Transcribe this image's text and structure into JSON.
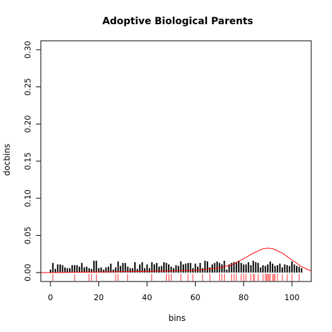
{
  "chart_data": {
    "type": "bar",
    "title": "Adoptive Biological Parents",
    "xlabel": "bins",
    "ylabel": "docbins",
    "xlim": [
      -4,
      108
    ],
    "ylim": [
      -0.012,
      0.312
    ],
    "x_ticks": [
      0,
      20,
      40,
      60,
      80,
      100
    ],
    "x_tick_labels": [
      "0",
      "20",
      "40",
      "60",
      "80",
      "100"
    ],
    "y_ticks": [
      0.0,
      0.05,
      0.1,
      0.15,
      0.2,
      0.25,
      0.3
    ],
    "y_tick_labels": [
      "0.00",
      "0.05",
      "0.10",
      "0.15",
      "0.20",
      "0.25",
      "0.30"
    ],
    "colors": {
      "bars": "#000000",
      "curve": "#ff0000",
      "rug": "#ff0000",
      "frame": "#000000"
    },
    "bins": [
      0,
      1,
      2,
      3,
      4,
      5,
      6,
      7,
      8,
      9,
      10,
      11,
      12,
      13,
      14,
      15,
      16,
      17,
      18,
      19,
      20,
      21,
      22,
      23,
      24,
      25,
      26,
      27,
      28,
      29,
      30,
      31,
      32,
      33,
      34,
      35,
      36,
      37,
      38,
      39,
      40,
      41,
      42,
      43,
      44,
      45,
      46,
      47,
      48,
      49,
      50,
      51,
      52,
      53,
      54,
      55,
      56,
      57,
      58,
      59,
      60,
      61,
      62,
      63,
      64,
      65,
      66,
      67,
      68,
      69,
      70,
      71,
      72,
      73,
      74,
      75,
      76,
      77,
      78,
      79,
      80,
      81,
      82,
      83,
      84,
      85,
      86,
      87,
      88,
      89,
      90,
      91,
      92,
      93,
      94,
      95,
      96,
      97,
      98,
      99,
      100,
      101,
      102,
      103,
      104
    ],
    "docbins": [
      0.004,
      0.013,
      0.005,
      0.011,
      0.011,
      0.01,
      0.007,
      0.006,
      0.006,
      0.01,
      0.01,
      0.01,
      0.008,
      0.013,
      0.007,
      0.008,
      0.006,
      0.005,
      0.016,
      0.016,
      0.006,
      0.007,
      0.004,
      0.007,
      0.008,
      0.012,
      0.004,
      0.007,
      0.015,
      0.009,
      0.013,
      0.013,
      0.008,
      0.006,
      0.006,
      0.014,
      0.005,
      0.011,
      0.014,
      0.006,
      0.011,
      0.006,
      0.014,
      0.011,
      0.013,
      0.008,
      0.009,
      0.014,
      0.013,
      0.011,
      0.008,
      0.006,
      0.01,
      0.009,
      0.015,
      0.011,
      0.012,
      0.013,
      0.013,
      0.006,
      0.012,
      0.008,
      0.013,
      0.006,
      0.016,
      0.015,
      0.007,
      0.011,
      0.013,
      0.015,
      0.013,
      0.011,
      0.016,
      0.004,
      0.011,
      0.013,
      0.014,
      0.014,
      0.016,
      0.013,
      0.011,
      0.011,
      0.014,
      0.01,
      0.016,
      0.014,
      0.013,
      0.007,
      0.01,
      0.009,
      0.011,
      0.015,
      0.012,
      0.009,
      0.01,
      0.012,
      0.007,
      0.011,
      0.01,
      0.009,
      0.015,
      0.011,
      0.009,
      0.008,
      0.006
    ],
    "density_curve": {
      "x": [
        -4,
        0,
        10,
        20,
        30,
        40,
        50,
        60,
        70,
        75,
        80,
        84,
        88,
        90,
        92,
        96,
        100,
        104,
        108
      ],
      "y": [
        0.0,
        0.0,
        0.0005,
        0.0008,
        0.0012,
        0.0016,
        0.0022,
        0.0032,
        0.0064,
        0.0104,
        0.0186,
        0.0262,
        0.032,
        0.033,
        0.0322,
        0.0264,
        0.017,
        0.008,
        0.002
      ]
    },
    "rug": [
      1,
      10,
      16,
      17,
      19,
      27,
      28,
      32,
      42,
      48,
      49,
      50,
      54,
      57,
      59,
      63,
      66,
      70,
      71,
      72,
      75,
      76,
      77,
      79,
      80,
      81,
      83,
      84,
      84.5,
      86,
      88,
      89,
      89.5,
      90,
      90.5,
      91,
      92,
      92.5,
      93,
      94,
      96,
      98,
      100,
      103
    ]
  }
}
